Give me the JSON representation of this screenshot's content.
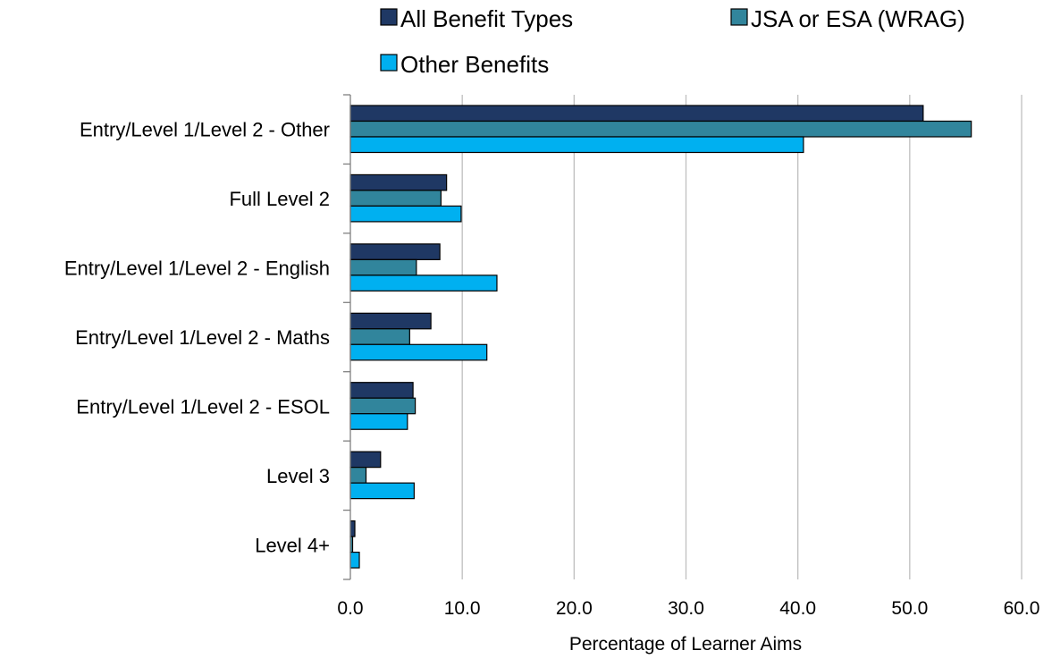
{
  "chart_data": {
    "type": "bar",
    "orientation": "horizontal",
    "title": "",
    "xlabel": "Percentage of Learner Aims",
    "ylabel": "",
    "xlim": [
      0,
      60
    ],
    "x_ticks": [
      "0.0",
      "10.0",
      "20.0",
      "30.0",
      "40.0",
      "50.0",
      "60.0"
    ],
    "grid": "vertical",
    "legend_position": "top",
    "categories": [
      "Entry/Level 1/Level 2 - Other",
      "Full Level 2",
      "Entry/Level 1/Level 2 - English",
      "Entry/Level 1/Level 2 - Maths",
      "Entry/Level 1/Level 2 - ESOL",
      "Level 3",
      "Level 4+"
    ],
    "series": [
      {
        "name": "All Benefit Types",
        "color": "#1f3864",
        "values": [
          51.2,
          8.6,
          8.0,
          7.2,
          5.6,
          2.7,
          0.4
        ]
      },
      {
        "name": "JSA or ESA (WRAG)",
        "color": "#31859c",
        "values": [
          55.5,
          8.1,
          5.9,
          5.3,
          5.8,
          1.4,
          0.2
        ]
      },
      {
        "name": "Other Benefits",
        "color": "#00b0f0",
        "values": [
          40.5,
          9.9,
          13.1,
          12.2,
          5.1,
          5.7,
          0.8
        ]
      }
    ]
  }
}
